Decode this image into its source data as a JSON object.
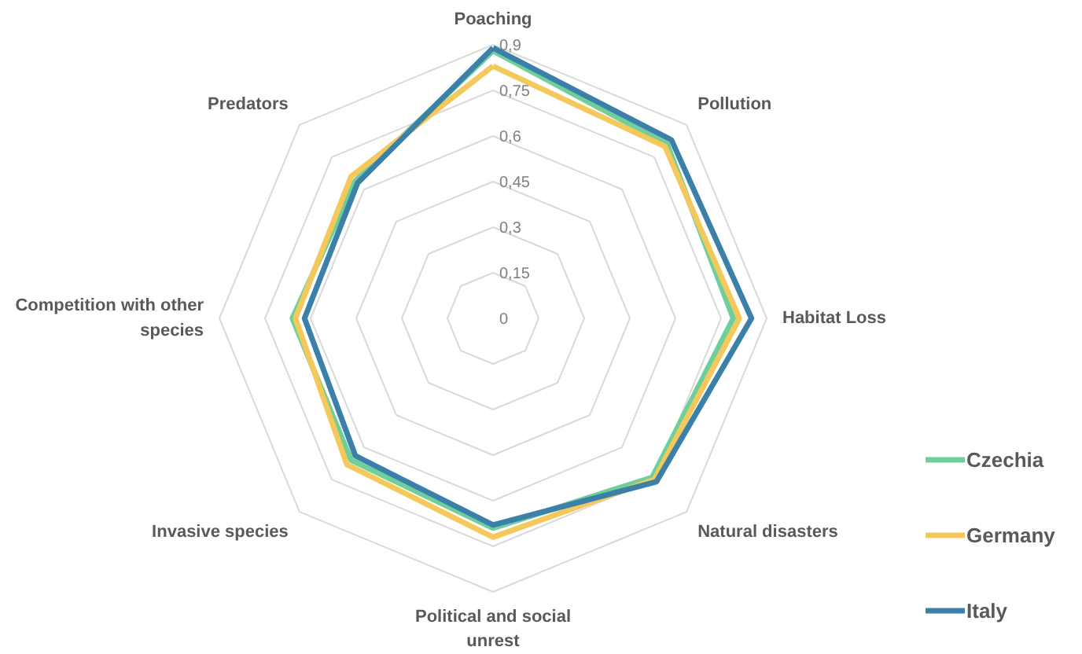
{
  "chart_data": {
    "type": "radar",
    "categories": [
      "Poaching",
      "Pollution",
      "Habitat Loss",
      "Natural disasters",
      "Political and social unrest",
      "Invasive species",
      "Competition with other species",
      "Predators"
    ],
    "series": [
      {
        "name": "Czechia",
        "color": "#6fcf9a",
        "values": [
          0.88,
          0.81,
          0.79,
          0.74,
          0.69,
          0.66,
          0.66,
          0.64
        ]
      },
      {
        "name": "Germany",
        "color": "#f5c85c",
        "values": [
          0.83,
          0.8,
          0.81,
          0.75,
          0.72,
          0.68,
          0.65,
          0.66
        ]
      },
      {
        "name": "Italy",
        "color": "#3b80a8",
        "values": [
          0.89,
          0.83,
          0.85,
          0.76,
          0.68,
          0.64,
          0.62,
          0.63
        ]
      }
    ],
    "ylim": [
      0,
      0.9
    ],
    "yticks": [
      {
        "value": 0,
        "label": "0"
      },
      {
        "value": 0.15,
        "label": "0,15"
      },
      {
        "value": 0.3,
        "label": "0,3"
      },
      {
        "value": 0.45,
        "label": "0,45"
      },
      {
        "value": 0.6,
        "label": "0,6"
      },
      {
        "value": 0.75,
        "label": "0,75"
      },
      {
        "value": 0.9,
        "label": "0,9"
      }
    ],
    "grid": true,
    "legend": "right"
  }
}
